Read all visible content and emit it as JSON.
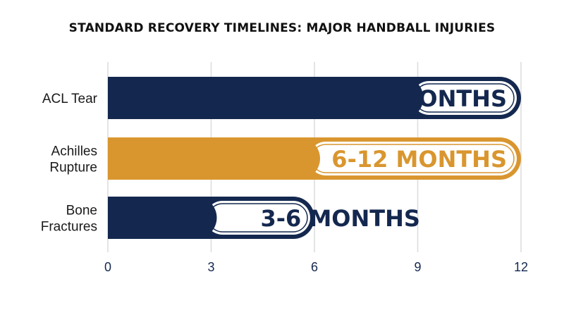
{
  "chart_data": {
    "type": "bar",
    "orientation": "horizontal",
    "title": "STANDARD RECOVERY TIMELINES: MAJOR HANDBALL INJURIES",
    "xlabel": "",
    "ylabel": "",
    "xlim": [
      0,
      12
    ],
    "ticks": [
      "0",
      "3",
      "6",
      "9",
      "12"
    ],
    "grid": true,
    "legend": "none",
    "categories": [
      "ACL Tear",
      "Achilles Rupture",
      "Bone Fractures"
    ],
    "category_lines": [
      [
        "ACL Tear"
      ],
      [
        "Achilles",
        "Rupture"
      ],
      [
        "Bone",
        "Fractures"
      ]
    ],
    "series": [
      {
        "values_min": [
          9,
          6,
          3
        ],
        "values_max": [
          12,
          12,
          6
        ],
        "labels": [
          "9-12 MONTHS",
          "6-12 MONTHS",
          "3-6 MONTHS"
        ],
        "colors": [
          "#14284f",
          "#d9962f",
          "#14284f"
        ],
        "label_colors": [
          "#14284f",
          "#d9962f",
          "#14284f"
        ]
      }
    ],
    "colors": {
      "navy": "#14284f",
      "gold": "#d9962f",
      "grid": "#dcdcdc",
      "axis_text": "#14284f"
    }
  }
}
